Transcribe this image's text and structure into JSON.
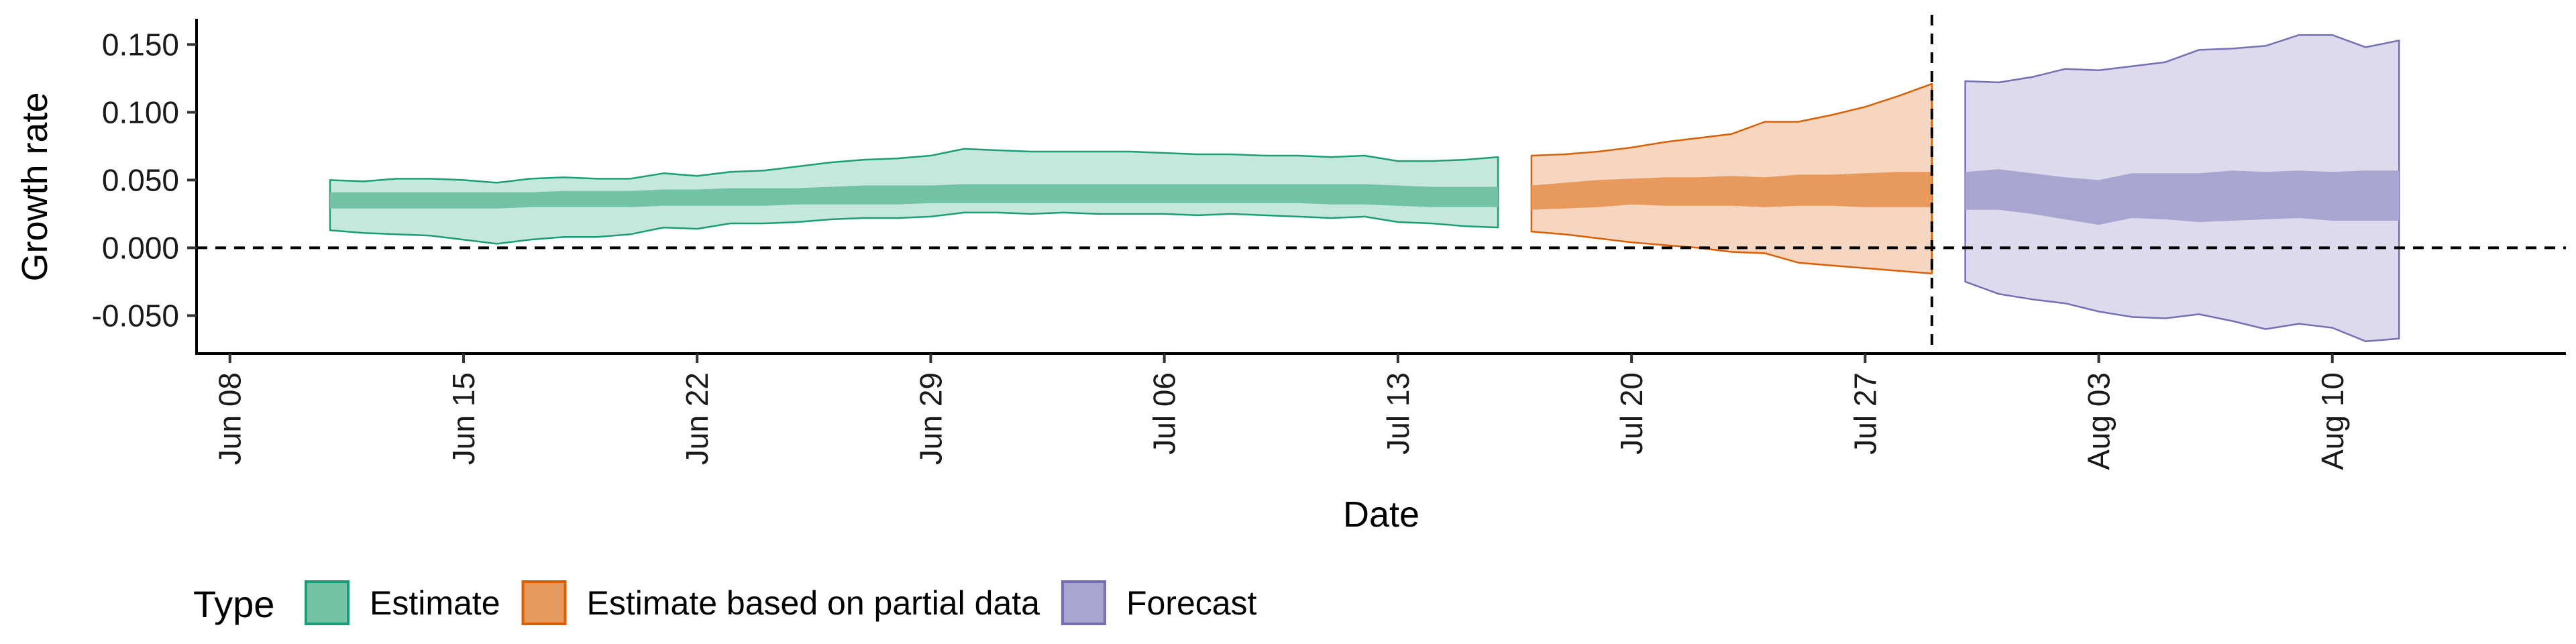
{
  "chart_data": {
    "type": "area",
    "xlabel": "Date",
    "ylabel": "Growth rate",
    "x_range": [
      "2021-06-07",
      "2021-08-17"
    ],
    "ylim": [
      -0.078,
      0.168
    ],
    "x_ticks": [
      {
        "date": "2021-06-08",
        "label": "Jun 08"
      },
      {
        "date": "2021-06-15",
        "label": "Jun 15"
      },
      {
        "date": "2021-06-22",
        "label": "Jun 22"
      },
      {
        "date": "2021-06-29",
        "label": "Jun 29"
      },
      {
        "date": "2021-07-06",
        "label": "Jul 06"
      },
      {
        "date": "2021-07-13",
        "label": "Jul 13"
      },
      {
        "date": "2021-07-20",
        "label": "Jul 20"
      },
      {
        "date": "2021-07-27",
        "label": "Jul 27"
      },
      {
        "date": "2021-08-03",
        "label": "Aug 03"
      },
      {
        "date": "2021-08-10",
        "label": "Aug 10"
      }
    ],
    "y_ticks": [
      {
        "value": -0.05,
        "label": "-0.050"
      },
      {
        "value": 0.0,
        "label": "0.000"
      },
      {
        "value": 0.05,
        "label": "0.050"
      },
      {
        "value": 0.1,
        "label": "0.100"
      },
      {
        "value": 0.15,
        "label": "0.150"
      }
    ],
    "hline": 0,
    "vline_date": "2021-07-29",
    "legend": {
      "title": "Type",
      "position": "bottom-left",
      "items": [
        {
          "label": "Estimate",
          "fill": "#72C3A6",
          "stroke": "#1B9E77"
        },
        {
          "label": "Estimate based on partial data",
          "fill": "#E8995C",
          "stroke": "#D95F02"
        },
        {
          "label": "Forecast",
          "fill": "#A9A5D1",
          "stroke": "#7570B3"
        }
      ]
    },
    "series": [
      {
        "name": "Estimate",
        "outer_fill": "#C6E8DC",
        "inner_fill": "#72C3A6",
        "stroke": "#1B9E77",
        "start_date": "2021-06-11",
        "outer_upper": [
          0.05,
          0.049,
          0.051,
          0.051,
          0.05,
          0.048,
          0.051,
          0.052,
          0.051,
          0.051,
          0.055,
          0.053,
          0.056,
          0.057,
          0.06,
          0.063,
          0.065,
          0.066,
          0.068,
          0.073,
          0.072,
          0.071,
          0.071,
          0.071,
          0.071,
          0.07,
          0.069,
          0.069,
          0.068,
          0.068,
          0.067,
          0.068,
          0.064,
          0.064,
          0.065,
          0.067
        ],
        "outer_lower": [
          0.013,
          0.011,
          0.01,
          0.009,
          0.006,
          0.003,
          0.006,
          0.008,
          0.008,
          0.01,
          0.015,
          0.014,
          0.018,
          0.018,
          0.019,
          0.021,
          0.022,
          0.022,
          0.023,
          0.026,
          0.026,
          0.025,
          0.026,
          0.025,
          0.025,
          0.025,
          0.024,
          0.025,
          0.024,
          0.023,
          0.022,
          0.023,
          0.019,
          0.018,
          0.016,
          0.015
        ],
        "inner_upper": [
          0.041,
          0.041,
          0.041,
          0.041,
          0.041,
          0.041,
          0.041,
          0.042,
          0.042,
          0.042,
          0.043,
          0.043,
          0.044,
          0.044,
          0.044,
          0.045,
          0.046,
          0.046,
          0.046,
          0.047,
          0.047,
          0.047,
          0.047,
          0.047,
          0.047,
          0.047,
          0.047,
          0.047,
          0.047,
          0.047,
          0.047,
          0.047,
          0.046,
          0.045,
          0.045,
          0.045
        ],
        "inner_lower": [
          0.029,
          0.029,
          0.029,
          0.029,
          0.029,
          0.029,
          0.03,
          0.03,
          0.03,
          0.03,
          0.031,
          0.031,
          0.031,
          0.031,
          0.032,
          0.032,
          0.032,
          0.032,
          0.033,
          0.033,
          0.033,
          0.033,
          0.033,
          0.033,
          0.033,
          0.033,
          0.033,
          0.033,
          0.033,
          0.033,
          0.032,
          0.032,
          0.031,
          0.03,
          0.03,
          0.03
        ]
      },
      {
        "name": "Estimate based on partial data",
        "outer_fill": "#F6D6C0",
        "inner_fill": "#E8995C",
        "stroke": "#D95F02",
        "start_date": "2021-07-17",
        "outer_upper": [
          0.068,
          0.069,
          0.071,
          0.074,
          0.078,
          0.081,
          0.084,
          0.093,
          0.093,
          0.098,
          0.104,
          0.112,
          0.121
        ],
        "outer_lower": [
          0.012,
          0.01,
          0.007,
          0.004,
          0.002,
          0.0,
          -0.003,
          -0.004,
          -0.011,
          -0.013,
          -0.015,
          -0.017,
          -0.019
        ],
        "inner_upper": [
          0.046,
          0.048,
          0.05,
          0.051,
          0.052,
          0.052,
          0.053,
          0.052,
          0.054,
          0.054,
          0.055,
          0.056,
          0.056
        ],
        "inner_lower": [
          0.028,
          0.029,
          0.03,
          0.032,
          0.031,
          0.031,
          0.031,
          0.03,
          0.031,
          0.031,
          0.03,
          0.03,
          0.03
        ]
      },
      {
        "name": "Forecast",
        "outer_fill": "#DCDAEC",
        "inner_fill": "#A9A5D1",
        "stroke": "#7570B3",
        "start_date": "2021-07-30",
        "outer_upper": [
          0.123,
          0.122,
          0.126,
          0.132,
          0.131,
          0.134,
          0.137,
          0.146,
          0.147,
          0.149,
          0.157,
          0.157,
          0.148,
          0.153
        ],
        "outer_lower": [
          -0.025,
          -0.034,
          -0.038,
          -0.041,
          -0.047,
          -0.051,
          -0.052,
          -0.049,
          -0.054,
          -0.06,
          -0.056,
          -0.059,
          -0.069,
          -0.067
        ],
        "inner_upper": [
          0.056,
          0.058,
          0.055,
          0.052,
          0.05,
          0.055,
          0.055,
          0.055,
          0.057,
          0.056,
          0.057,
          0.056,
          0.057,
          0.057
        ],
        "inner_lower": [
          0.028,
          0.028,
          0.025,
          0.021,
          0.017,
          0.022,
          0.021,
          0.019,
          0.02,
          0.021,
          0.022,
          0.02,
          0.02,
          0.02
        ]
      }
    ]
  }
}
